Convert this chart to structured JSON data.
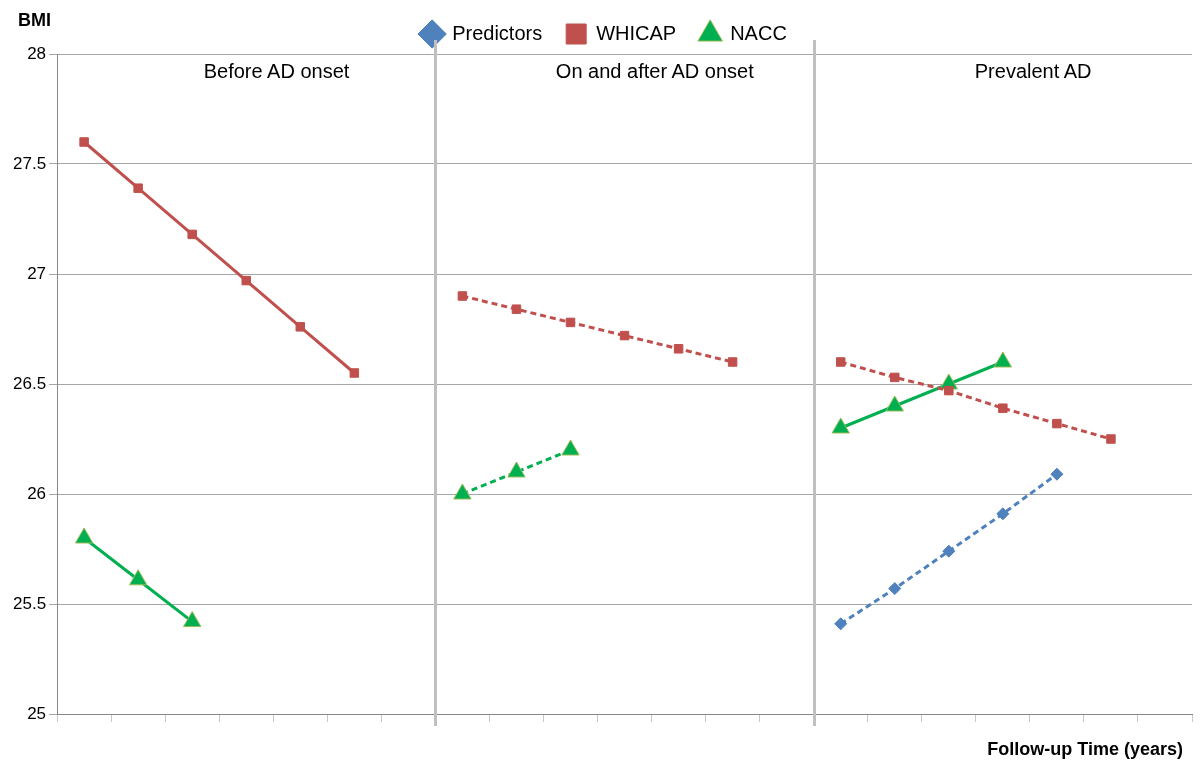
{
  "chart_data": {
    "type": "line",
    "ylabel": "BMI",
    "xlabel": "Follow-up Time (years)",
    "categories": [
      null,
      null,
      null,
      null,
      null,
      null,
      null,
      null,
      null,
      null,
      null,
      null,
      null,
      null,
      null,
      null,
      null,
      null,
      null,
      null,
      null
    ],
    "ylim": [
      25,
      28
    ],
    "yticks": [
      25,
      25.5,
      26,
      26.5,
      27,
      27.5,
      28
    ],
    "grid": "y",
    "legend": "top",
    "tick_labels": "y",
    "annotations": [
      "Before AD onset",
      "On and after AD onset",
      "Prevalent AD"
    ],
    "series": [
      {
        "name": "Predictors",
        "color": "#4f81bd",
        "line_style": "dashed",
        "marker": "diamond",
        "values": [
          null,
          null,
          null,
          null,
          null,
          null,
          null,
          null,
          null,
          null,
          null,
          null,
          null,
          null,
          25.41,
          25.57,
          25.74,
          25.91,
          26.09,
          null,
          null
        ]
      },
      {
        "name": "WHICAP",
        "color": "#c0504d",
        "line_style": "solid",
        "marker": "square",
        "values": [
          27.6,
          27.39,
          27.18,
          26.97,
          26.76,
          26.55,
          null,
          null,
          null,
          null,
          null,
          null,
          null,
          null,
          null,
          null,
          null,
          null,
          null,
          null,
          null
        ]
      },
      {
        "name": "NACC",
        "color": "#00b050",
        "line_style": "solid",
        "marker": "triangle",
        "values": [
          25.8,
          25.61,
          25.42,
          null,
          null,
          null,
          null,
          null,
          null,
          null,
          null,
          null,
          null,
          null,
          null,
          null,
          null,
          null,
          null,
          null,
          null
        ]
      },
      {
        "color": "#c0504d",
        "line_style": "dashed",
        "marker": "square",
        "values": [
          null,
          null,
          null,
          null,
          null,
          null,
          null,
          26.9,
          26.84,
          26.78,
          26.72,
          26.66,
          26.6,
          null,
          26.6,
          26.53,
          26.47,
          26.39,
          26.32,
          26.25,
          null
        ]
      },
      {
        "color": "#00b050",
        "line_style": "dashed",
        "marker": "triangle",
        "values": [
          null,
          null,
          null,
          null,
          null,
          null,
          null,
          26.0,
          26.1,
          26.2,
          null,
          null,
          null,
          null,
          null,
          null,
          null,
          null,
          null,
          null,
          null
        ]
      },
      {
        "color": "#00b050",
        "line_style": "solid",
        "marker": "triangle",
        "values": [
          null,
          null,
          null,
          null,
          null,
          null,
          null,
          null,
          null,
          null,
          null,
          null,
          null,
          null,
          26.3,
          26.4,
          26.5,
          26.6,
          null,
          null,
          null
        ]
      }
    ]
  }
}
